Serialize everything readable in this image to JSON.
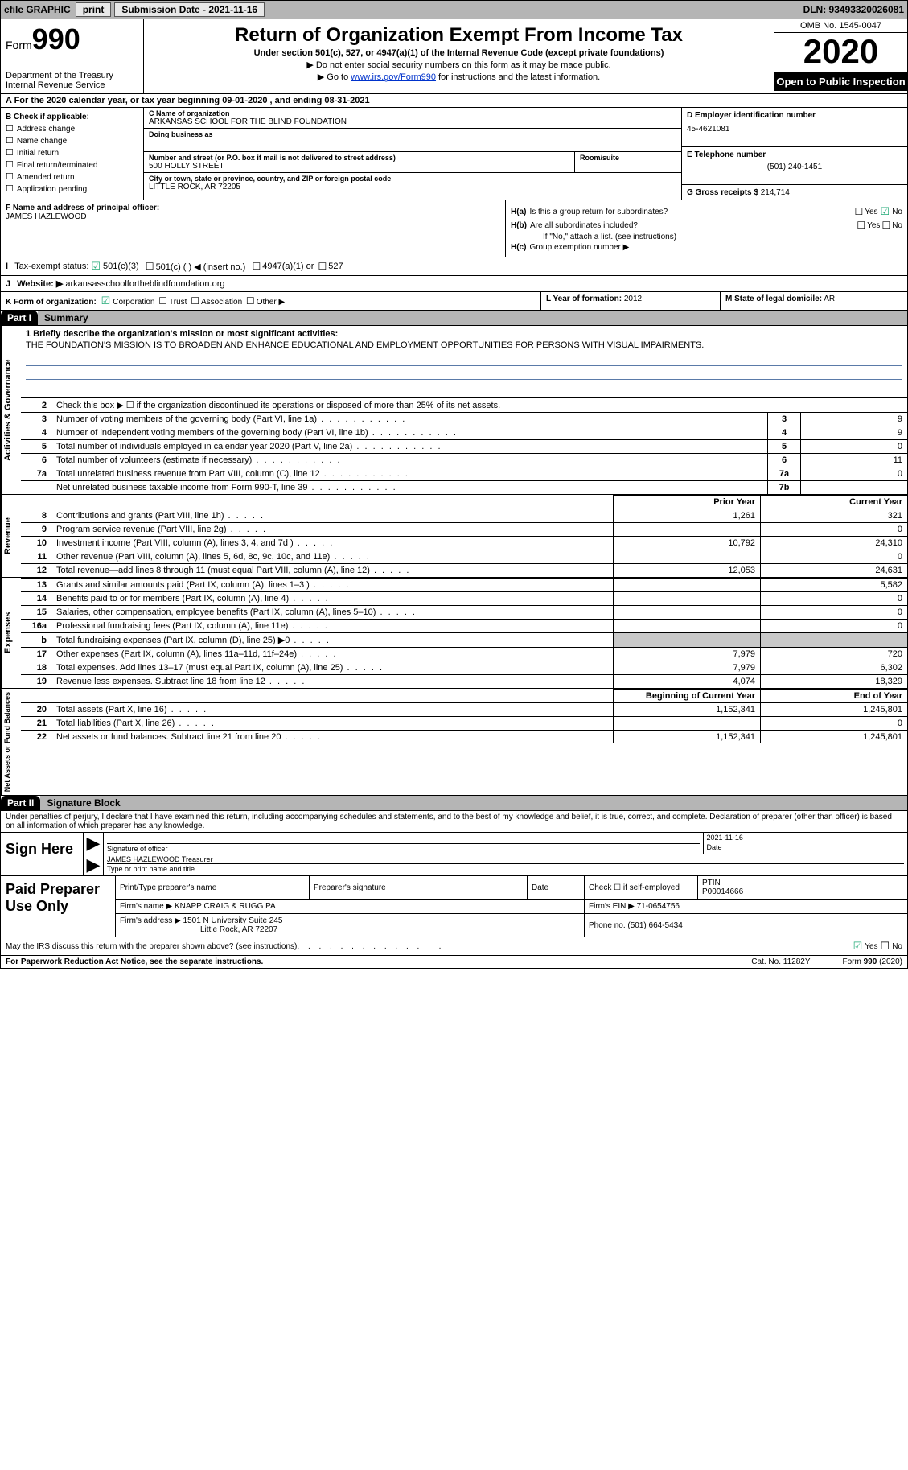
{
  "topbar": {
    "efile": "efile GRAPHIC",
    "print": "print",
    "sub_label": "Submission Date - 2021-11-16",
    "dln": "DLN: 93493320026081"
  },
  "header": {
    "form_word": "Form",
    "form_no": "990",
    "dept": "Department of the Treasury\nInternal Revenue Service",
    "title": "Return of Organization Exempt From Income Tax",
    "subtitle": "Under section 501(c), 527, or 4947(a)(1) of the Internal Revenue Code (except private foundations)",
    "note1": "▶ Do not enter social security numbers on this form as it may be made public.",
    "note2_pre": "▶ Go to ",
    "note2_link": "www.irs.gov/Form990",
    "note2_post": " for instructions and the latest information.",
    "omb": "OMB No. 1545-0047",
    "year": "2020",
    "open": "Open to Public Inspection"
  },
  "row_a": "A For the 2020 calendar year, or tax year beginning 09-01-2020   , and ending 08-31-2021",
  "section_b": {
    "checks_label": "B Check if applicable:",
    "checks": [
      "Address change",
      "Name change",
      "Initial return",
      "Final return/terminated",
      "Amended return",
      "Application pending"
    ],
    "c_label": "C Name of organization",
    "c_name": "ARKANSAS SCHOOL FOR THE BLIND FOUNDATION",
    "dba_label": "Doing business as",
    "dba": "",
    "addr_label": "Number and street (or P.O. box if mail is not delivered to street address)",
    "addr": "500 HOLLY STREET",
    "room_label": "Room/suite",
    "city_label": "City or town, state or province, country, and ZIP or foreign postal code",
    "city": "LITTLE ROCK, AR  72205",
    "d_label": "D Employer identification number",
    "d_val": "45-4621081",
    "e_label": "E Telephone number",
    "e_val": "(501) 240-1451",
    "g_label": "G Gross receipts $",
    "g_val": "214,714"
  },
  "section_fh": {
    "f_label": "F Name and address of principal officer:",
    "f_name": "JAMES HAZLEWOOD",
    "ha_label": "H(a)",
    "ha_text": "Is this a group return for subordinates?",
    "hb_label": "H(b)",
    "hb_text": "Are all subordinates included?",
    "h_note": "If \"No,\" attach a list. (see instructions)",
    "hc_label": "H(c)",
    "hc_text": "Group exemption number ▶",
    "yes": "Yes",
    "no": "No"
  },
  "row_i": {
    "lead": "I",
    "label": "Tax-exempt status:",
    "opt1": "501(c)(3)",
    "opt2": "501(c) (  ) ◀ (insert no.)",
    "opt3": "4947(a)(1) or",
    "opt4": "527"
  },
  "row_j": {
    "lead": "J",
    "label": "Website: ▶",
    "val": "arkansasschoolfortheblindfoundation.org"
  },
  "row_k": {
    "k_label": "K Form of organization:",
    "opts": [
      "Corporation",
      "Trust",
      "Association",
      "Other ▶"
    ],
    "l_label": "L Year of formation:",
    "l_val": "2012",
    "m_label": "M State of legal domicile:",
    "m_val": "AR"
  },
  "parts": {
    "p1": "Part I",
    "p1_title": "Summary",
    "p2": "Part II",
    "p2_title": "Signature Block"
  },
  "summary": {
    "line1_label": "1  Briefly describe the organization's mission or most significant activities:",
    "mission": "THE FOUNDATION'S MISSION IS TO BROADEN AND ENHANCE EDUCATIONAL AND EMPLOYMENT OPPORTUNITIES FOR PERSONS WITH VISUAL IMPAIRMENTS.",
    "line2": "Check this box ▶ ☐  if the organization discontinued its operations or disposed of more than 25% of its net assets.",
    "rows_simple": [
      {
        "n": "3",
        "desc": "Number of voting members of the governing body (Part VI, line 1a)",
        "box": "3",
        "val": "9"
      },
      {
        "n": "4",
        "desc": "Number of independent voting members of the governing body (Part VI, line 1b)",
        "box": "4",
        "val": "9"
      },
      {
        "n": "5",
        "desc": "Total number of individuals employed in calendar year 2020 (Part V, line 2a)",
        "box": "5",
        "val": "0"
      },
      {
        "n": "6",
        "desc": "Total number of volunteers (estimate if necessary)",
        "box": "6",
        "val": "11"
      },
      {
        "n": "7a",
        "desc": "Total unrelated business revenue from Part VIII, column (C), line 12",
        "box": "7a",
        "val": "0"
      },
      {
        "n": "",
        "desc": "Net unrelated business taxable income from Form 990-T, line 39",
        "box": "7b",
        "val": ""
      }
    ],
    "col_py": "Prior Year",
    "col_cy": "Current Year",
    "revenue_rows": [
      {
        "n": "8",
        "desc": "Contributions and grants (Part VIII, line 1h)",
        "py": "1,261",
        "cy": "321"
      },
      {
        "n": "9",
        "desc": "Program service revenue (Part VIII, line 2g)",
        "py": "",
        "cy": "0"
      },
      {
        "n": "10",
        "desc": "Investment income (Part VIII, column (A), lines 3, 4, and 7d )",
        "py": "10,792",
        "cy": "24,310"
      },
      {
        "n": "11",
        "desc": "Other revenue (Part VIII, column (A), lines 5, 6d, 8c, 9c, 10c, and 11e)",
        "py": "",
        "cy": "0"
      },
      {
        "n": "12",
        "desc": "Total revenue—add lines 8 through 11 (must equal Part VIII, column (A), line 12)",
        "py": "12,053",
        "cy": "24,631"
      }
    ],
    "expense_rows": [
      {
        "n": "13",
        "desc": "Grants and similar amounts paid (Part IX, column (A), lines 1–3 )",
        "py": "",
        "cy": "5,582"
      },
      {
        "n": "14",
        "desc": "Benefits paid to or for members (Part IX, column (A), line 4)",
        "py": "",
        "cy": "0"
      },
      {
        "n": "15",
        "desc": "Salaries, other compensation, employee benefits (Part IX, column (A), lines 5–10)",
        "py": "",
        "cy": "0"
      },
      {
        "n": "16a",
        "desc": "Professional fundraising fees (Part IX, column (A), line 11e)",
        "py": "",
        "cy": "0"
      },
      {
        "n": "b",
        "desc": "Total fundraising expenses (Part IX, column (D), line 25) ▶0",
        "py": "shade",
        "cy": "shade"
      },
      {
        "n": "17",
        "desc": "Other expenses (Part IX, column (A), lines 11a–11d, 11f–24e)",
        "py": "7,979",
        "cy": "720"
      },
      {
        "n": "18",
        "desc": "Total expenses. Add lines 13–17 (must equal Part IX, column (A), line 25)",
        "py": "7,979",
        "cy": "6,302"
      },
      {
        "n": "19",
        "desc": "Revenue less expenses. Subtract line 18 from line 12",
        "py": "4,074",
        "cy": "18,329"
      }
    ],
    "col_boy": "Beginning of Current Year",
    "col_eoy": "End of Year",
    "netassets_rows": [
      {
        "n": "20",
        "desc": "Total assets (Part X, line 16)",
        "py": "1,152,341",
        "cy": "1,245,801"
      },
      {
        "n": "21",
        "desc": "Total liabilities (Part X, line 26)",
        "py": "",
        "cy": "0"
      },
      {
        "n": "22",
        "desc": "Net assets or fund balances. Subtract line 21 from line 20",
        "py": "1,152,341",
        "cy": "1,245,801"
      }
    ],
    "vert_gov": "Activities & Governance",
    "vert_rev": "Revenue",
    "vert_exp": "Expenses",
    "vert_net": "Net Assets or Fund Balances"
  },
  "sig": {
    "para": "Under penalties of perjury, I declare that I have examined this return, including accompanying schedules and statements, and to the best of my knowledge and belief, it is true, correct, and complete. Declaration of preparer (other than officer) is based on all information of which preparer has any knowledge.",
    "sign_here": "Sign Here",
    "sig_officer": "Signature of officer",
    "date_label": "Date",
    "date_val": "2021-11-16",
    "name_title": "JAMES HAZLEWOOD  Treasurer",
    "type_name": "Type or print name and title"
  },
  "prep": {
    "label": "Paid Preparer Use Only",
    "h1": "Print/Type preparer's name",
    "h2": "Preparer's signature",
    "h3": "Date",
    "h4_pre": "Check ☐ if self-employed",
    "h5": "PTIN",
    "ptin": "P00014666",
    "firm_name_lbl": "Firm's name   ▶",
    "firm_name": "KNAPP CRAIG & RUGG PA",
    "firm_ein_lbl": "Firm's EIN ▶",
    "firm_ein": "71-0654756",
    "firm_addr_lbl": "Firm's address ▶",
    "firm_addr1": "1501 N University Suite 245",
    "firm_addr2": "Little Rock, AR  72207",
    "phone_lbl": "Phone no.",
    "phone": "(501) 664-5434"
  },
  "footer": {
    "discuss": "May the IRS discuss this return with the preparer shown above? (see instructions)",
    "yes": "Yes",
    "no": "No",
    "pra": "For Paperwork Reduction Act Notice, see the separate instructions.",
    "cat": "Cat. No. 11282Y",
    "form": "Form 990 (2020)"
  }
}
